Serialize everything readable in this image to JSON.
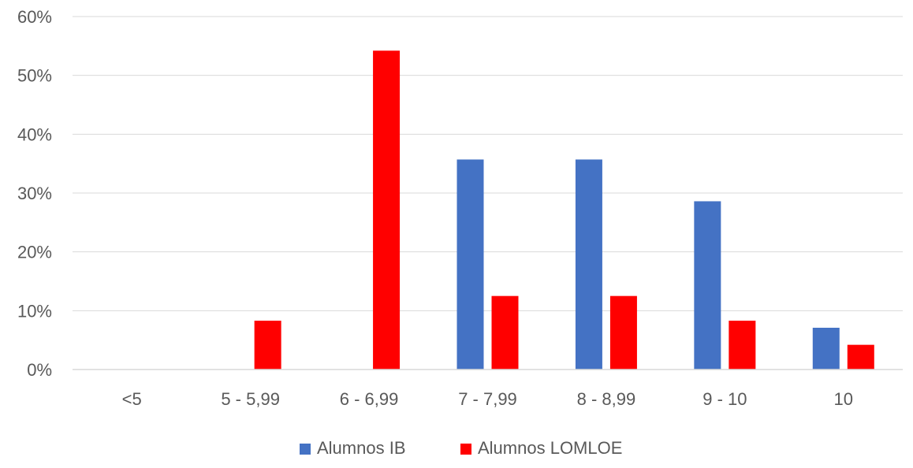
{
  "chart_data": {
    "type": "bar",
    "title": "",
    "xlabel": "",
    "ylabel": "",
    "categories": [
      "<5",
      "5 - 5,99",
      "6 - 6,99",
      "7 - 7,99",
      "8 - 8,99",
      "9 - 10",
      "10"
    ],
    "series": [
      {
        "name": "Alumnos IB",
        "color": "#4472C4",
        "values": [
          0,
          0,
          0,
          35.7,
          35.7,
          28.6,
          7.1
        ]
      },
      {
        "name": "Alumnos LOMLOE",
        "color": "#FF0000",
        "values": [
          0,
          8.3,
          54.2,
          12.5,
          12.5,
          8.3,
          4.2
        ]
      }
    ],
    "ylim": [
      0,
      60
    ],
    "yticks": [
      0,
      10,
      20,
      30,
      40,
      50,
      60
    ],
    "ytick_labels": [
      "0%",
      "10%",
      "20%",
      "30%",
      "40%",
      "50%",
      "60%"
    ],
    "grid": true,
    "legend_position": "bottom"
  }
}
